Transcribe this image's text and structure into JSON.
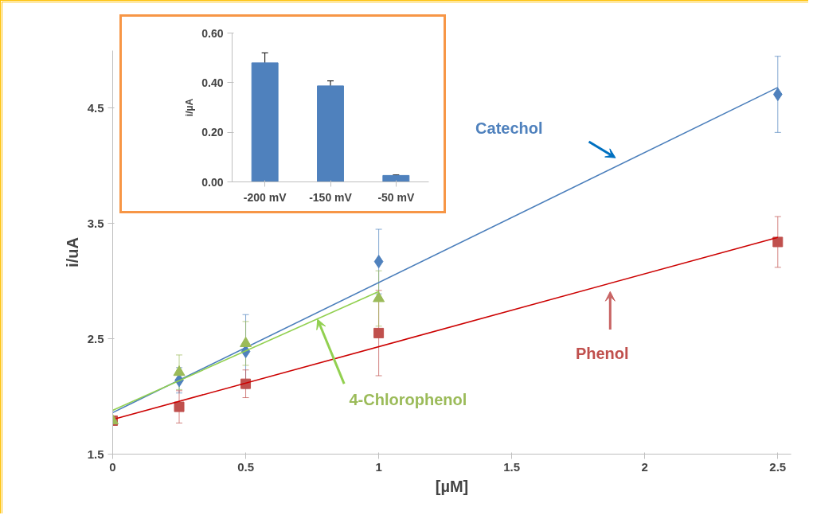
{
  "chart_data": [
    {
      "type": "scatter",
      "xlabel": "[µM]",
      "ylabel": "i/uA",
      "xlim": [
        0,
        2.55
      ],
      "ylim": [
        1.5,
        5.0
      ],
      "xticks": [
        0,
        0.5,
        1,
        1.5,
        2,
        2.5
      ],
      "yticks": [
        1.5,
        2.5,
        3.5,
        4.5
      ],
      "grid": false,
      "series": [
        {
          "name": "Catechol",
          "type": "scatter",
          "marker": "diamond",
          "color": "#4f81bd",
          "x": [
            0.25,
            0.5,
            1,
            2.5
          ],
          "values": [
            2.14,
            2.39,
            3.17,
            4.62
          ],
          "errors": [
            0.11,
            0.32,
            0.28,
            0.33
          ]
        },
        {
          "type": "line",
          "color": "#4a7ebb",
          "line_style": "solid",
          "marker": "none",
          "x": [
            0,
            2.5
          ],
          "values": [
            1.86,
            4.68
          ]
        },
        {
          "name": "Phenol",
          "type": "scatter",
          "marker": "square",
          "color": "#c0504d",
          "x": [
            0,
            0.25,
            0.5,
            1,
            2.5
          ],
          "values": [
            1.79,
            1.91,
            2.11,
            2.55,
            3.34
          ],
          "errors": [
            null,
            0.14,
            0.12,
            0.37,
            0.22
          ]
        },
        {
          "type": "line",
          "color": "#cc0000",
          "line_style": "solid",
          "marker": "none",
          "x": [
            0,
            2.5
          ],
          "values": [
            1.8,
            3.38
          ]
        },
        {
          "name": "4-Chlorophenol",
          "type": "scatter",
          "marker": "triangle",
          "color": "#9bbb59",
          "x": [
            0,
            0.25,
            0.5,
            1
          ],
          "values": [
            1.79,
            2.21,
            2.46,
            2.85
          ],
          "errors": [
            null,
            0.15,
            0.19,
            0.24
          ]
        },
        {
          "type": "line",
          "color": "#92d050",
          "line_style": "solid",
          "marker": "none",
          "x": [
            0,
            1
          ],
          "values": [
            1.88,
            2.91
          ]
        }
      ]
    },
    {
      "type": "bar",
      "ylabel": "i/µA",
      "categories": [
        "-200 mV",
        "-150 mV",
        "-50 mV"
      ],
      "values": [
        0.48,
        0.387,
        0.026
      ],
      "errors": [
        0.04,
        0.02,
        0.002
      ],
      "color": "#4f81bd",
      "ylim": [
        0,
        0.6
      ],
      "yticks": [
        {
          "value": 0,
          "label": "0.00"
        },
        {
          "value": 0.2,
          "label": "0.20"
        },
        {
          "value": 0.4,
          "label": "0.40"
        },
        {
          "value": 0.6,
          "label": "0.60"
        }
      ],
      "grid": false
    }
  ]
}
